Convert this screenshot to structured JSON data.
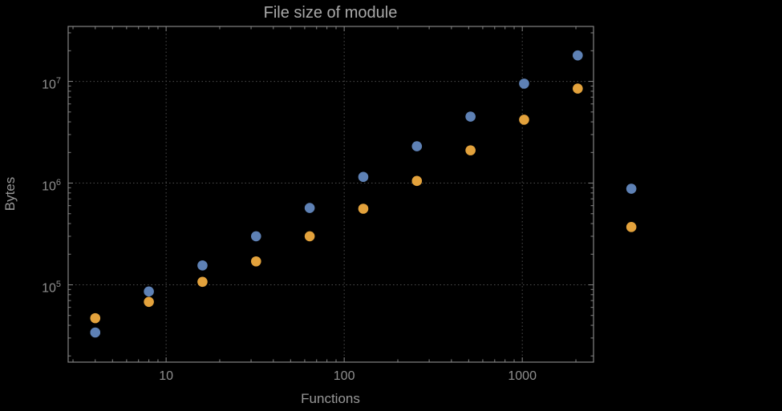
{
  "chart_data": {
    "type": "scatter",
    "title": "File size of module",
    "xlabel": "Functions",
    "ylabel": "Bytes",
    "x_scale": "log",
    "y_scale": "log",
    "grid": true,
    "legend": "none",
    "x": [
      4,
      8,
      16,
      32,
      64,
      128,
      256,
      512,
      1024,
      2048,
      4096
    ],
    "series": [
      {
        "name": "blue",
        "color": "#5e81b5",
        "values": [
          34000,
          86000,
          155000,
          300000,
          570000,
          1150000,
          2300000,
          4500000,
          9500000,
          18000000,
          880000
        ]
      },
      {
        "name": "orange",
        "color": "#e3a23c",
        "values": [
          47000,
          68000,
          107000,
          170000,
          300000,
          560000,
          1050000,
          2100000,
          4200000,
          8500000,
          370000
        ]
      }
    ],
    "x_ticks": [
      {
        "value": 10,
        "label": "10"
      },
      {
        "value": 100,
        "label": "100"
      },
      {
        "value": 1000,
        "label": "1000"
      }
    ],
    "y_ticks": [
      {
        "value": 100000,
        "base": "10",
        "exp": "5"
      },
      {
        "value": 1000000,
        "base": "10",
        "exp": "6"
      },
      {
        "value": 10000000,
        "base": "10",
        "exp": "7"
      }
    ],
    "x_range_log": [
      0.45,
      3.4
    ],
    "y_range_log": [
      4.24,
      7.54
    ],
    "colors": {
      "background": "#000000",
      "frame": "#848484",
      "grid": "#4e4e4e",
      "title": "#a9a9a9",
      "tick_label": "#8f8f8f",
      "axis_label": "#989898"
    }
  }
}
